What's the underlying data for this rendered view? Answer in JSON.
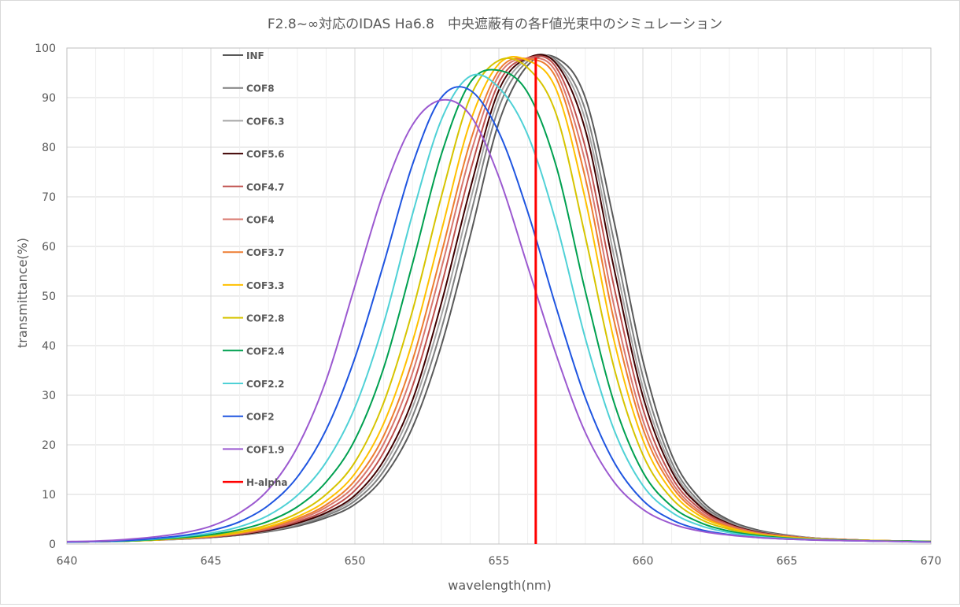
{
  "chart_data": {
    "type": "line",
    "title": "F2.8~∞対応のIDAS Ha6.8　中央遮蔽有の各F値光束中のシミュレーション",
    "xlabel": "wavelength(nm)",
    "ylabel": "transmittance(%)",
    "xlim": [
      640,
      670
    ],
    "ylim": [
      0,
      100
    ],
    "xticks": [
      640,
      645,
      650,
      655,
      660,
      665,
      670
    ],
    "yticks": [
      0,
      10,
      20,
      30,
      40,
      50,
      60,
      70,
      80,
      90,
      100
    ],
    "grid": true,
    "legend_position": "inside-left",
    "x": [
      640,
      641,
      642,
      643,
      644,
      645,
      646,
      647,
      648,
      649,
      650,
      651,
      652,
      653,
      654,
      655,
      656,
      657,
      658,
      659,
      660,
      661,
      662,
      663,
      664,
      665,
      666,
      667,
      668,
      669,
      670
    ],
    "series": [
      {
        "name": "INF",
        "color": "#595959",
        "values": [
          0.4,
          0.5,
          0.6,
          0.8,
          1.0,
          1.3,
          1.8,
          2.5,
          3.6,
          5.3,
          8.0,
          13.5,
          23.5,
          40.0,
          62.0,
          85.0,
          96.5,
          98.0,
          90.0,
          65.0,
          37.0,
          18.0,
          9.0,
          4.8,
          2.8,
          1.8,
          1.2,
          0.9,
          0.7,
          0.6,
          0.5
        ]
      },
      {
        "name": "COF8",
        "color": "#7f7f7f",
        "values": [
          0.4,
          0.5,
          0.6,
          0.8,
          1.0,
          1.3,
          1.8,
          2.6,
          3.8,
          5.7,
          8.7,
          14.7,
          25.7,
          43.3,
          66.0,
          88.0,
          97.3,
          97.5,
          87.5,
          61.0,
          33.8,
          16.5,
          8.3,
          4.5,
          2.6,
          1.7,
          1.2,
          0.9,
          0.7,
          0.6,
          0.5
        ]
      },
      {
        "name": "COF6.3",
        "color": "#a5a5a5",
        "values": [
          0.4,
          0.5,
          0.6,
          0.8,
          1.0,
          1.4,
          1.9,
          2.7,
          4.0,
          6.0,
          9.3,
          15.8,
          27.5,
          46.0,
          69.0,
          90.0,
          97.8,
          97.2,
          85.5,
          58.0,
          31.5,
          15.5,
          7.8,
          4.3,
          2.5,
          1.7,
          1.2,
          0.9,
          0.7,
          0.6,
          0.5
        ]
      },
      {
        "name": "COF5.6",
        "color": "#3f0000",
        "values": [
          0.4,
          0.5,
          0.6,
          0.8,
          1.1,
          1.4,
          1.9,
          2.8,
          4.2,
          6.3,
          9.8,
          16.8,
          29.0,
          48.5,
          71.5,
          91.5,
          98.0,
          96.8,
          83.5,
          55.5,
          29.8,
          14.7,
          7.5,
          4.1,
          2.4,
          1.6,
          1.1,
          0.9,
          0.7,
          0.6,
          0.5
        ]
      },
      {
        "name": "COF4.7",
        "color": "#c0504d",
        "values": [
          0.4,
          0.5,
          0.6,
          0.8,
          1.1,
          1.4,
          2.0,
          3.0,
          4.5,
          6.8,
          10.8,
          18.5,
          31.8,
          52.0,
          75.0,
          93.0,
          98.0,
          96.0,
          80.0,
          51.8,
          27.3,
          13.5,
          7.0,
          3.9,
          2.3,
          1.6,
          1.1,
          0.9,
          0.7,
          0.6,
          0.5
        ]
      },
      {
        "name": "COF4",
        "color": "#d9776e",
        "values": [
          0.4,
          0.5,
          0.6,
          0.8,
          1.1,
          1.5,
          2.1,
          3.2,
          4.8,
          7.4,
          11.8,
          20.2,
          34.5,
          55.5,
          78.3,
          94.5,
          97.9,
          95.0,
          77.0,
          48.0,
          25.0,
          12.5,
          6.5,
          3.7,
          2.2,
          1.5,
          1.1,
          0.9,
          0.7,
          0.6,
          0.5
        ]
      },
      {
        "name": "COF3.7",
        "color": "#ed7d31",
        "values": [
          0.4,
          0.5,
          0.6,
          0.8,
          1.1,
          1.5,
          2.2,
          3.3,
          5.1,
          7.9,
          12.8,
          21.8,
          37.0,
          58.5,
          81.0,
          95.5,
          97.8,
          93.8,
          73.8,
          45.0,
          23.3,
          11.7,
          6.1,
          3.5,
          2.1,
          1.5,
          1.1,
          0.9,
          0.7,
          0.6,
          0.5
        ]
      },
      {
        "name": "COF3.3",
        "color": "#ffc000",
        "values": [
          0.4,
          0.5,
          0.6,
          0.8,
          1.2,
          1.6,
          2.3,
          3.5,
          5.5,
          8.7,
          14.2,
          24.3,
          40.8,
          63.0,
          85.0,
          96.8,
          97.5,
          91.5,
          69.5,
          41.0,
          21.0,
          10.6,
          5.6,
          3.3,
          2.0,
          1.4,
          1.0,
          0.8,
          0.7,
          0.6,
          0.5
        ]
      },
      {
        "name": "COF2.8",
        "color": "#d6c400",
        "values": [
          0.4,
          0.5,
          0.6,
          0.8,
          1.2,
          1.7,
          2.5,
          3.9,
          6.2,
          10.0,
          16.5,
          28.5,
          47.0,
          70.0,
          90.0,
          97.5,
          96.0,
          86.5,
          62.0,
          35.5,
          18.0,
          9.2,
          5.0,
          3.0,
          1.9,
          1.3,
          1.0,
          0.8,
          0.7,
          0.6,
          0.5
        ]
      },
      {
        "name": "COF2.4",
        "color": "#00a050",
        "values": [
          0.4,
          0.5,
          0.6,
          0.9,
          1.3,
          1.9,
          2.9,
          4.6,
          7.5,
          12.5,
          21.0,
          35.5,
          56.5,
          78.5,
          93.0,
          95.5,
          91.0,
          76.0,
          51.0,
          28.5,
          14.5,
          7.6,
          4.3,
          2.6,
          1.7,
          1.2,
          0.9,
          0.8,
          0.6,
          0.6,
          0.5
        ]
      },
      {
        "name": "COF2.2",
        "color": "#4fd1d6",
        "values": [
          0.4,
          0.5,
          0.7,
          1.0,
          1.5,
          2.2,
          3.5,
          5.8,
          9.8,
          16.5,
          27.5,
          44.5,
          66.5,
          85.5,
          94.3,
          92.0,
          82.5,
          64.5,
          41.5,
          23.0,
          11.8,
          6.4,
          3.7,
          2.3,
          1.5,
          1.1,
          0.9,
          0.7,
          0.6,
          0.5,
          0.4
        ]
      },
      {
        "name": "COF2",
        "color": "#1f55e0",
        "values": [
          0.4,
          0.5,
          0.7,
          1.1,
          1.7,
          2.7,
          4.5,
          7.8,
          13.5,
          23.0,
          37.5,
          56.5,
          76.5,
          90.0,
          91.5,
          83.0,
          67.0,
          47.5,
          29.5,
          16.5,
          8.8,
          4.9,
          2.9,
          1.9,
          1.3,
          1.0,
          0.8,
          0.7,
          0.6,
          0.5,
          0.4
        ]
      },
      {
        "name": "COF1.9",
        "color": "#9b59d0",
        "values": [
          0.5,
          0.6,
          0.9,
          1.4,
          2.2,
          3.6,
          6.3,
          11.0,
          19.5,
          33.0,
          52.0,
          71.0,
          84.5,
          89.5,
          86.5,
          74.0,
          56.0,
          38.0,
          22.5,
          12.5,
          7.0,
          4.1,
          2.6,
          1.8,
          1.3,
          1.0,
          0.8,
          0.7,
          0.6,
          0.5,
          0.4
        ]
      }
    ],
    "markers": [
      {
        "name": "H-alpha",
        "color": "#ff0000",
        "x": 656.28
      }
    ]
  }
}
